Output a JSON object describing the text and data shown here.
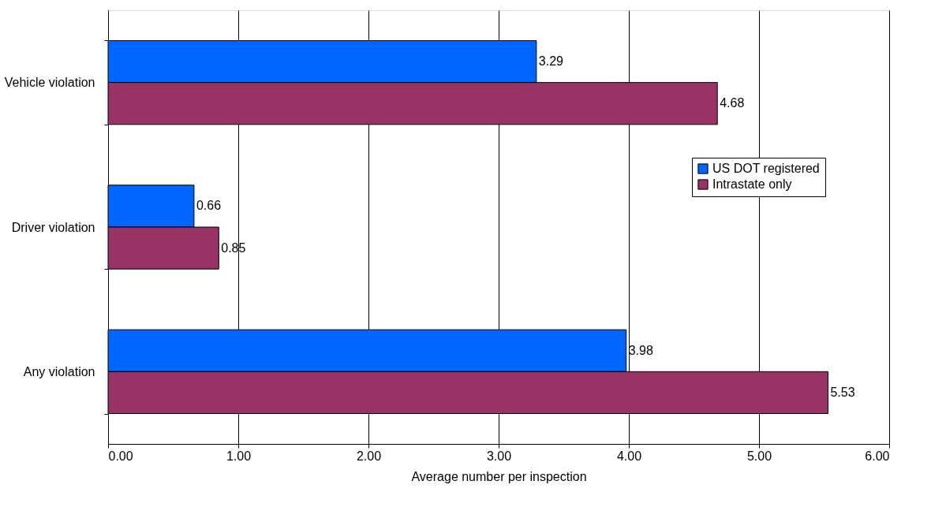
{
  "chart_data": {
    "type": "bar",
    "orientation": "horizontal",
    "categories": [
      "Vehicle violation",
      "Driver violation",
      "Any violation"
    ],
    "series": [
      {
        "name": "US DOT registered",
        "color": "#0066ff",
        "values": [
          3.29,
          0.66,
          3.98
        ]
      },
      {
        "name": "Intrastate only",
        "color": "#993366",
        "values": [
          4.68,
          0.85,
          5.53
        ]
      }
    ],
    "xlabel": "Average number per inspection",
    "xlim": [
      0,
      6
    ],
    "xticks": [
      {
        "value": 0,
        "label": "0.00"
      },
      {
        "value": 1,
        "label": "1.00"
      },
      {
        "value": 2,
        "label": "2.00"
      },
      {
        "value": 3,
        "label": "3.00"
      },
      {
        "value": 4,
        "label": "4.00"
      },
      {
        "value": 5,
        "label": "5.00"
      },
      {
        "value": 6,
        "label": "6.00"
      }
    ],
    "grid": "x",
    "legend": "right",
    "data_labels": true
  }
}
